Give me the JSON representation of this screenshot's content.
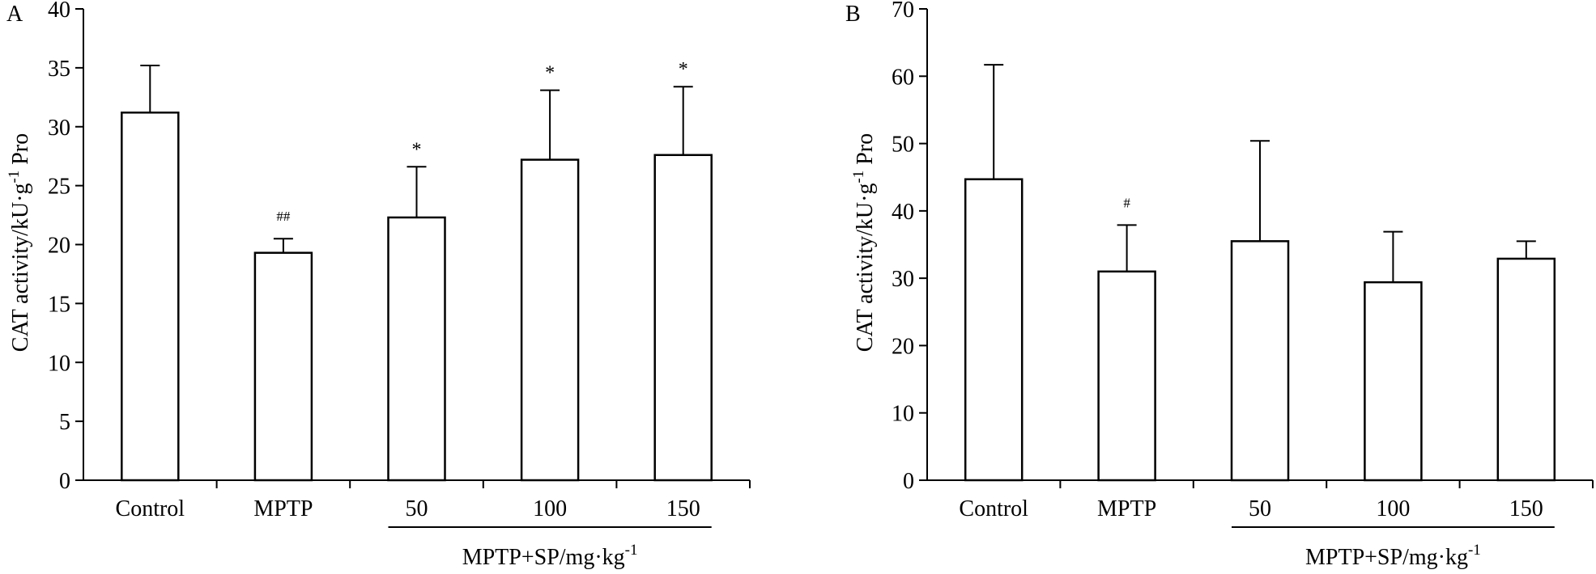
{
  "chart_data": [
    {
      "panel": "A",
      "type": "bar",
      "categories": [
        "Control",
        "MPTP",
        "50",
        "100",
        "150"
      ],
      "values": [
        31.2,
        19.3,
        22.3,
        27.2,
        27.6
      ],
      "errors": [
        4.0,
        1.2,
        4.3,
        5.9,
        5.8
      ],
      "significance": [
        "",
        "##",
        "*",
        "*",
        "*"
      ],
      "ylabel": "CAT activity/kU·g",
      "ylabel_sup": "-1",
      "ylabel_suffix": " Pro",
      "ylim": [
        0,
        40
      ],
      "yticks": [
        0,
        5,
        10,
        15,
        20,
        25,
        30,
        35,
        40
      ],
      "group_label": "MPTP+SP/mg·kg",
      "group_label_sup": "-1",
      "group_span": [
        "50",
        "150"
      ]
    },
    {
      "panel": "B",
      "type": "bar",
      "categories": [
        "Control",
        "MPTP",
        "50",
        "100",
        "150"
      ],
      "values": [
        44.7,
        31.0,
        35.5,
        29.4,
        32.9
      ],
      "errors": [
        17.0,
        6.9,
        14.9,
        7.5,
        2.6
      ],
      "significance": [
        "",
        "#",
        "",
        "",
        ""
      ],
      "ylabel": "CAT activity/kU·g",
      "ylabel_sup": "-1",
      "ylabel_suffix": " Pro",
      "ylim": [
        0,
        70
      ],
      "yticks": [
        0,
        10,
        20,
        30,
        40,
        50,
        60,
        70
      ],
      "group_label": "MPTP+SP/mg·kg",
      "group_label_sup": "-1",
      "group_span": [
        "50",
        "150"
      ]
    }
  ]
}
